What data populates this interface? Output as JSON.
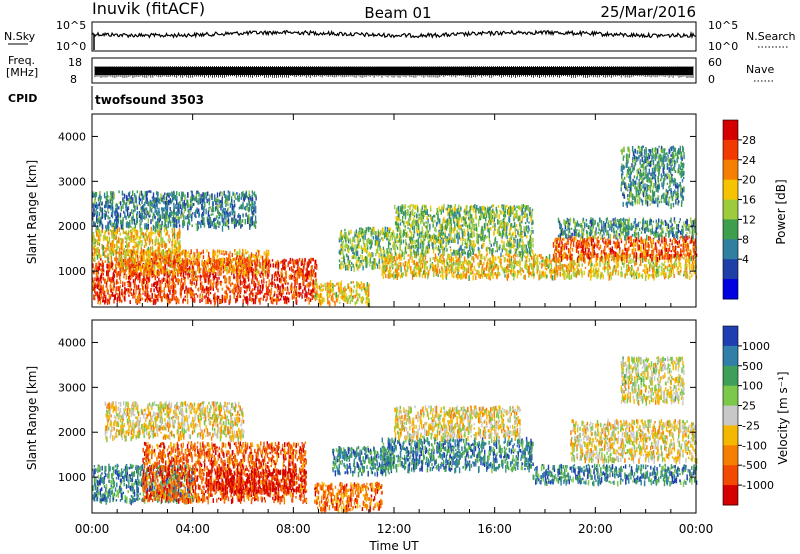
{
  "header": {
    "station": "Inuvik (fitACF)",
    "beam": "Beam 01",
    "date": "25/Mar/2016"
  },
  "strip_panels": {
    "nsky": {
      "label": "N.Sky",
      "tick_top": "10^5",
      "tick_bottom": "10^0"
    },
    "nsearch": {
      "label": "N.Search",
      "tick_top": "10^5",
      "tick_bottom": "10^0"
    },
    "freq": {
      "label_line1": "Freq.",
      "label_line2": "[MHz]",
      "tick_top": "18",
      "tick_bottom": "8"
    },
    "nave": {
      "label": "Nave",
      "tick_top": "60",
      "tick_bottom": "0"
    },
    "cpid": {
      "label": "CPID",
      "value": "twofsound 3503"
    }
  },
  "chart_data": [
    {
      "type": "heatmap",
      "panel": "power",
      "ylabel": "Slant Range [km]",
      "ylim": [
        200,
        4500
      ],
      "yticks": [
        1000,
        2000,
        3000,
        4000
      ],
      "xlim": [
        0,
        24
      ],
      "colorbar": {
        "label": "Power [dB]",
        "ticks": [
          "28",
          "24",
          "20",
          "16",
          "12",
          "8",
          "4"
        ],
        "colors": [
          "#d40000",
          "#f23a00",
          "#f77f00",
          "#f5c300",
          "#9ecb3c",
          "#3f9e4d",
          "#2f7fa0",
          "#1f3fa8",
          "#0000e0"
        ]
      },
      "bands": [
        {
          "t0": 0.0,
          "t1": 8.9,
          "r0": 350,
          "r1": 1300,
          "level": 0.85
        },
        {
          "t0": 0.0,
          "t1": 3.5,
          "r0": 1300,
          "r1": 2000,
          "level": 0.6
        },
        {
          "t0": 0.0,
          "t1": 6.5,
          "r0": 2000,
          "r1": 2800,
          "level": 0.3
        },
        {
          "t0": 1.0,
          "t1": 7.0,
          "r0": 1000,
          "r1": 1500,
          "level": 0.7
        },
        {
          "t0": 8.8,
          "t1": 11.0,
          "r0": 300,
          "r1": 800,
          "level": 0.6
        },
        {
          "t0": 9.8,
          "t1": 12.0,
          "r0": 1100,
          "r1": 2000,
          "level": 0.45
        },
        {
          "t0": 11.5,
          "t1": 24.0,
          "r0": 900,
          "r1": 1400,
          "level": 0.6
        },
        {
          "t0": 12.0,
          "t1": 17.5,
          "r0": 1400,
          "r1": 2500,
          "level": 0.45
        },
        {
          "t0": 18.3,
          "t1": 24.0,
          "r0": 1300,
          "r1": 1800,
          "level": 0.8
        },
        {
          "t0": 18.5,
          "t1": 24.0,
          "r0": 1800,
          "r1": 2200,
          "level": 0.35
        },
        {
          "t0": 21.0,
          "t1": 23.5,
          "r0": 2500,
          "r1": 3800,
          "level": 0.35
        }
      ]
    },
    {
      "type": "heatmap",
      "panel": "velocity",
      "ylabel": "Slant Range [km]",
      "xlabel": "Time UT",
      "ylim": [
        200,
        4500
      ],
      "yticks": [
        1000,
        2000,
        3000,
        4000
      ],
      "xlim": [
        0,
        24
      ],
      "xticks": [
        "00:00",
        "04:00",
        "08:00",
        "12:00",
        "16:00",
        "20:00",
        "00:00"
      ],
      "colorbar": {
        "label": "Velocity [m s⁻¹]",
        "ticks": [
          "1000",
          "500",
          "100",
          "25",
          "-25",
          "-100",
          "-500",
          "-1000"
        ],
        "colors": [
          "#1f3fb0",
          "#2f7fa8",
          "#3f9e5a",
          "#7cc84a",
          "#c8c8c8",
          "#f5b800",
          "#f77f00",
          "#f24a00",
          "#d40000"
        ]
      },
      "bands": [
        {
          "t0": 0.0,
          "t1": 4.0,
          "r0": 500,
          "r1": 1300,
          "level": 0.8
        },
        {
          "t0": 2.0,
          "t1": 8.5,
          "r0": 500,
          "r1": 1800,
          "level": 0.2
        },
        {
          "t0": 4.5,
          "t1": 8.5,
          "r0": 700,
          "r1": 1200,
          "level": 0.05
        },
        {
          "t0": 0.5,
          "t1": 6.0,
          "r0": 1900,
          "r1": 2700,
          "level": 0.45
        },
        {
          "t0": 8.8,
          "t1": 11.5,
          "r0": 300,
          "r1": 900,
          "level": 0.25
        },
        {
          "t0": 9.5,
          "t1": 12.0,
          "r0": 1100,
          "r1": 1700,
          "level": 0.8
        },
        {
          "t0": 11.5,
          "t1": 17.5,
          "r0": 1200,
          "r1": 1900,
          "level": 0.8
        },
        {
          "t0": 12.0,
          "t1": 17.0,
          "r0": 1900,
          "r1": 2600,
          "level": 0.45
        },
        {
          "t0": 17.5,
          "t1": 24.0,
          "r0": 900,
          "r1": 1300,
          "level": 0.8
        },
        {
          "t0": 19.0,
          "t1": 24.0,
          "r0": 1400,
          "r1": 2300,
          "level": 0.45
        },
        {
          "t0": 21.0,
          "t1": 23.5,
          "r0": 2700,
          "r1": 3700,
          "level": 0.5
        }
      ]
    }
  ]
}
